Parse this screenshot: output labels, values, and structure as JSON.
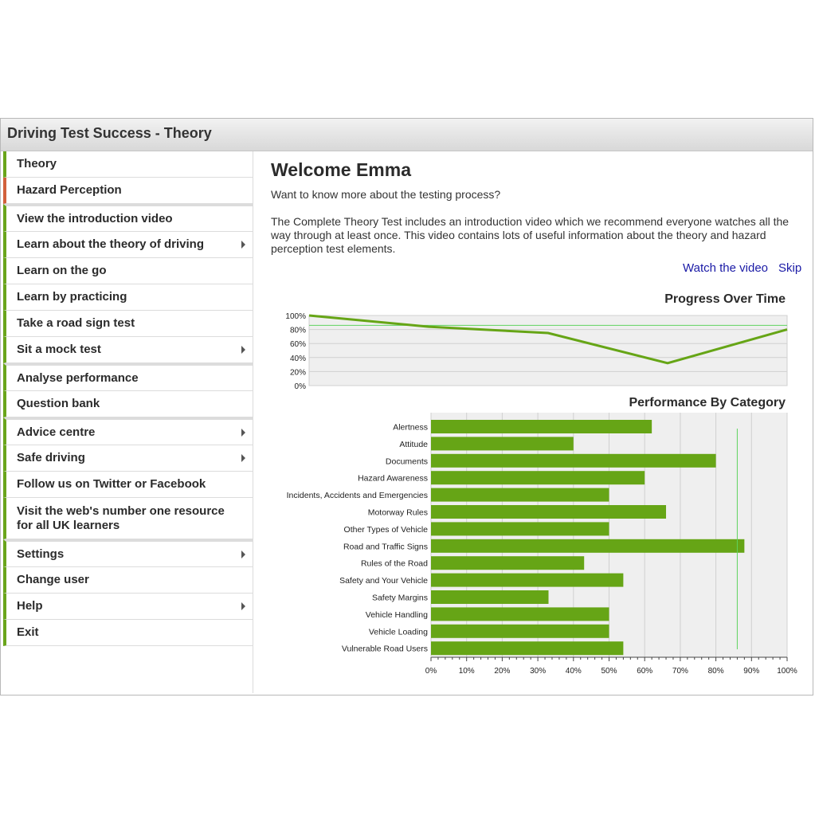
{
  "window": {
    "title": "Driving Test Success - Theory"
  },
  "sidebar": {
    "items": [
      {
        "label": "Theory",
        "submenu": false
      },
      {
        "label": "Hazard Perception",
        "submenu": false
      },
      {
        "label": "View the introduction video",
        "submenu": false
      },
      {
        "label": "Learn about the theory of driving",
        "submenu": true
      },
      {
        "label": "Learn on the go",
        "submenu": false
      },
      {
        "label": "Learn by practicing",
        "submenu": false
      },
      {
        "label": "Take a road sign test",
        "submenu": false
      },
      {
        "label": "Sit a mock test",
        "submenu": true
      },
      {
        "label": "Analyse performance",
        "submenu": false
      },
      {
        "label": "Question bank",
        "submenu": false
      },
      {
        "label": "Advice centre",
        "submenu": true
      },
      {
        "label": "Safe driving",
        "submenu": true
      },
      {
        "label": "Follow us on Twitter or Facebook",
        "submenu": false
      },
      {
        "label": "Visit the web's number one resource",
        "label2": "for all UK learners",
        "submenu": false
      },
      {
        "label": "Settings",
        "submenu": true
      },
      {
        "label": "Change user",
        "submenu": false
      },
      {
        "label": "Help",
        "submenu": true
      },
      {
        "label": "Exit",
        "submenu": false
      }
    ]
  },
  "main": {
    "welcome": "Welcome Emma",
    "question": "Want to know more about the testing process?",
    "paragraph": "The Complete Theory Test includes an introduction video which we recommend everyone watches all the way through at least once. This video contains lots of useful information about the theory and hazard perception test elements.",
    "watch_link": "Watch the video",
    "skip_link": "Skip"
  },
  "colors": {
    "accent_green": "#6aa51b",
    "accent_orange": "#d2613c",
    "bar_green": "#66a516",
    "link_blue": "#1a1aa6"
  },
  "chart_data": [
    {
      "type": "line",
      "title": "Progress Over Time",
      "y_ticks": [
        "100%",
        "80%",
        "60%",
        "40%",
        "20%",
        "0%"
      ],
      "ylim": [
        0,
        100
      ],
      "x": [
        0,
        1,
        2,
        3,
        4
      ],
      "values": [
        100,
        84,
        75,
        32,
        80
      ],
      "reference_line": 86,
      "grid": true
    },
    {
      "type": "bar",
      "orientation": "horizontal",
      "title": "Performance By Category",
      "categories": [
        "Alertness",
        "Attitude",
        "Documents",
        "Hazard Awareness",
        "Incidents, Accidents and Emergencies",
        "Motorway Rules",
        "Other Types of Vehicle",
        "Road and Traffic Signs",
        "Rules of the Road",
        "Safety and Your Vehicle",
        "Safety Margins",
        "Vehicle Handling",
        "Vehicle Loading",
        "Vulnerable Road Users"
      ],
      "values": [
        62,
        40,
        80,
        60,
        50,
        66,
        50,
        88,
        43,
        54,
        33,
        50,
        50,
        54
      ],
      "x_ticks": [
        "0%",
        "10%",
        "20%",
        "30%",
        "40%",
        "50%",
        "60%",
        "70%",
        "80%",
        "90%",
        "100%"
      ],
      "xlim": [
        0,
        100
      ],
      "reference_line": 86,
      "grid": true
    }
  ]
}
